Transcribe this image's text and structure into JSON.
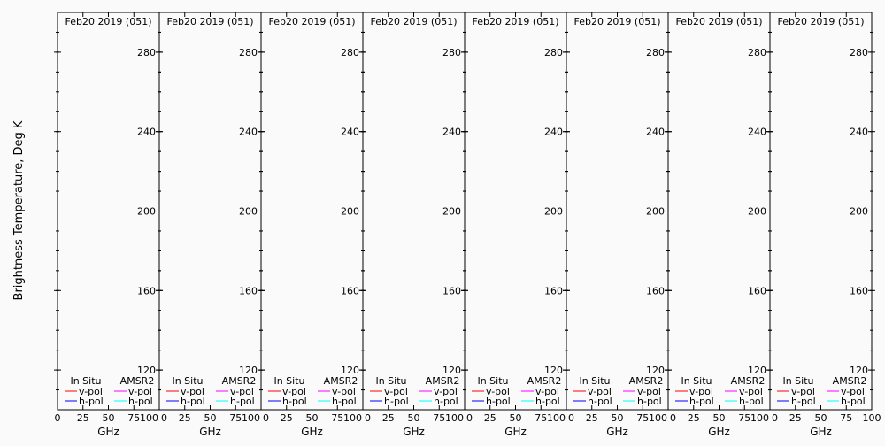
{
  "chart_data": [
    {
      "type": "line",
      "title": "Feb20 2019 (051)",
      "xlabel": "GHz",
      "ylabel": "Brightness Temperature, Deg K",
      "xlim": [
        0,
        100
      ],
      "ylim": [
        100,
        300
      ],
      "xticks": [
        0,
        25,
        50,
        75,
        100
      ],
      "yticks": [
        120,
        160,
        200,
        240,
        280
      ],
      "legend": {
        "groups": [
          "In Situ",
          "AMSR2"
        ],
        "entries": [
          {
            "group": "In Situ",
            "name": "v-pol",
            "color": "#ff0000"
          },
          {
            "group": "In Situ",
            "name": "h-pol",
            "color": "#0000ff"
          },
          {
            "group": "AMSR2",
            "name": "v-pol",
            "color": "#ff00ff"
          },
          {
            "group": "AMSR2",
            "name": "h-pol",
            "color": "#00ffff"
          }
        ],
        "placement": "bottom"
      },
      "series": []
    },
    {
      "type": "line",
      "title": "Feb20 2019 (051)",
      "xlabel": "GHz",
      "xlim": [
        0,
        100
      ],
      "ylim": [
        100,
        300
      ],
      "xticks": [
        0,
        25,
        50,
        75,
        100
      ],
      "yticks": [
        120,
        160,
        200,
        240,
        280
      ],
      "series": []
    },
    {
      "type": "line",
      "title": "Feb20 2019 (051)",
      "xlabel": "GHz",
      "xlim": [
        0,
        100
      ],
      "ylim": [
        100,
        300
      ],
      "xticks": [
        0,
        25,
        50,
        75,
        100
      ],
      "yticks": [
        120,
        160,
        200,
        240,
        280
      ],
      "series": []
    },
    {
      "type": "line",
      "title": "Feb20 2019 (051)",
      "xlabel": "GHz",
      "xlim": [
        0,
        100
      ],
      "ylim": [
        100,
        300
      ],
      "xticks": [
        0,
        25,
        50,
        75,
        100
      ],
      "yticks": [
        120,
        160,
        200,
        240,
        280
      ],
      "series": []
    },
    {
      "type": "line",
      "title": "Feb20 2019 (051)",
      "xlabel": "GHz",
      "xlim": [
        0,
        100
      ],
      "ylim": [
        100,
        300
      ],
      "xticks": [
        0,
        25,
        50,
        75,
        100
      ],
      "yticks": [
        120,
        160,
        200,
        240,
        280
      ],
      "series": []
    },
    {
      "type": "line",
      "title": "Feb20 2019 (051)",
      "xlabel": "GHz",
      "xlim": [
        0,
        100
      ],
      "ylim": [
        100,
        300
      ],
      "xticks": [
        0,
        25,
        50,
        75,
        100
      ],
      "yticks": [
        120,
        160,
        200,
        240,
        280
      ],
      "series": []
    },
    {
      "type": "line",
      "title": "Feb20 2019 (051)",
      "xlabel": "GHz",
      "xlim": [
        0,
        100
      ],
      "ylim": [
        100,
        300
      ],
      "xticks": [
        0,
        25,
        50,
        75,
        100
      ],
      "yticks": [
        120,
        160,
        200,
        240,
        280
      ],
      "series": []
    },
    {
      "type": "line",
      "title": "Feb20 2019 (051)",
      "xlabel": "GHz",
      "xlim": [
        0,
        100
      ],
      "ylim": [
        100,
        300
      ],
      "xticks": [
        0,
        25,
        50,
        75,
        100
      ],
      "yticks": [
        120,
        160,
        200,
        240,
        280
      ],
      "series": []
    }
  ]
}
